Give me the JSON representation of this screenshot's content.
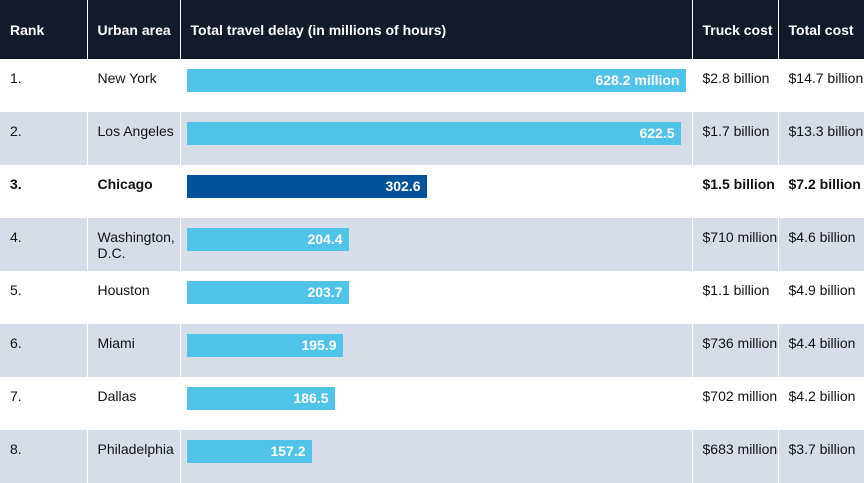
{
  "chart_data": {
    "type": "bar",
    "columns": [
      "Rank",
      "Urban area",
      "Total travel delay (in millions of hours)",
      "Truck cost",
      "Total cost"
    ],
    "max_value": 628.2,
    "highlight_color": "#02539a",
    "bar_color": "#4fc3e8",
    "rows": [
      {
        "rank": "1.",
        "area": "New York",
        "value": 628.2,
        "label": "628.2 million",
        "truck_cost": "$2.8 billion",
        "total_cost": "$14.7 billion",
        "highlight": false
      },
      {
        "rank": "2.",
        "area": "Los Angeles",
        "value": 622.5,
        "label": "622.5",
        "truck_cost": "$1.7 billion",
        "total_cost": "$13.3 billion",
        "highlight": false
      },
      {
        "rank": "3.",
        "area": "Chicago",
        "value": 302.6,
        "label": "302.6",
        "truck_cost": "$1.5 billion",
        "total_cost": "$7.2 billion",
        "highlight": true
      },
      {
        "rank": "4.",
        "area": "Washington, D.C.",
        "value": 204.4,
        "label": "204.4",
        "truck_cost": "$710 million",
        "total_cost": "$4.6 billion",
        "highlight": false
      },
      {
        "rank": "5.",
        "area": "Houston",
        "value": 203.7,
        "label": "203.7",
        "truck_cost": "$1.1 billion",
        "total_cost": "$4.9 billion",
        "highlight": false
      },
      {
        "rank": "6.",
        "area": "Miami",
        "value": 195.9,
        "label": "195.9",
        "truck_cost": "$736 million",
        "total_cost": "$4.4 billion",
        "highlight": false
      },
      {
        "rank": "7.",
        "area": "Dallas",
        "value": 186.5,
        "label": "186.5",
        "truck_cost": "$702 million",
        "total_cost": "$4.2 billion",
        "highlight": false
      },
      {
        "rank": "8.",
        "area": "Philadelphia",
        "value": 157.2,
        "label": "157.2",
        "truck_cost": "$683 million",
        "total_cost": "$3.7 billion",
        "highlight": false
      }
    ]
  }
}
